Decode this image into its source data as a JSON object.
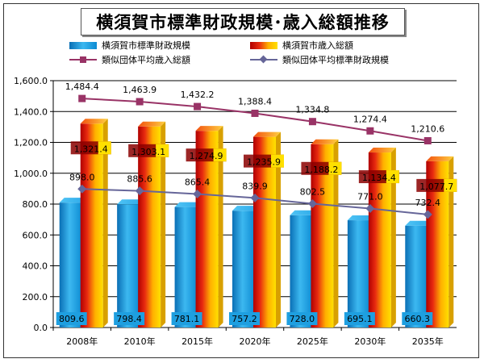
{
  "chart_data": {
    "type": "bar",
    "title": "横須賀市標準財政規模･歳入総額推移",
    "categories": [
      "2008年",
      "2010年",
      "2015年",
      "2020年",
      "2025年",
      "2030年",
      "2035年"
    ],
    "ylim": [
      0,
      1600
    ],
    "yticks": [
      "0.0",
      "200.0",
      "400.0",
      "600.0",
      "800.0",
      "1,000.0",
      "1,200.0",
      "1,400.0",
      "1,600.0"
    ],
    "grid": true,
    "legend_position": "top",
    "series": [
      {
        "name": "横須賀市標準財政規模",
        "kind": "bar",
        "values": [
          809.6,
          798.4,
          781.1,
          757.2,
          728.0,
          695.1,
          660.3
        ],
        "labels": [
          "809.6",
          "798.4",
          "781.1",
          "757.2",
          "728.0",
          "695.1",
          "660.3"
        ],
        "color": "#1E9FE0"
      },
      {
        "name": "横須賀市歳入総額",
        "kind": "bar",
        "values": [
          1321.4,
          1303.1,
          1274.9,
          1235.9,
          1188.2,
          1134.4,
          1077.7
        ],
        "labels": [
          "1,321.4",
          "1,303.1",
          "1,274.9",
          "1,235.9",
          "1,188.2",
          "1,134.4",
          "1,077.7"
        ],
        "color": "#E53010"
      },
      {
        "name": "類似団体平均歳入総額",
        "kind": "line",
        "marker": "square",
        "values": [
          1484.4,
          1463.9,
          1432.2,
          1388.4,
          1334.8,
          1274.4,
          1210.6
        ],
        "labels": [
          "1,484.4",
          "1,463.9",
          "1,432.2",
          "1,388.4",
          "1,334.8",
          "1,274.4",
          "1,210.6"
        ],
        "color": "#993366"
      },
      {
        "name": "類似団体平均標準財政規模",
        "kind": "line",
        "marker": "diamond",
        "values": [
          898.0,
          885.6,
          865.4,
          839.9,
          802.5,
          771.0,
          732.4
        ],
        "labels": [
          "898.0",
          "885.6",
          "865.4",
          "839.9",
          "802.5",
          "771.0",
          "732.4"
        ],
        "color": "#666699"
      }
    ]
  }
}
